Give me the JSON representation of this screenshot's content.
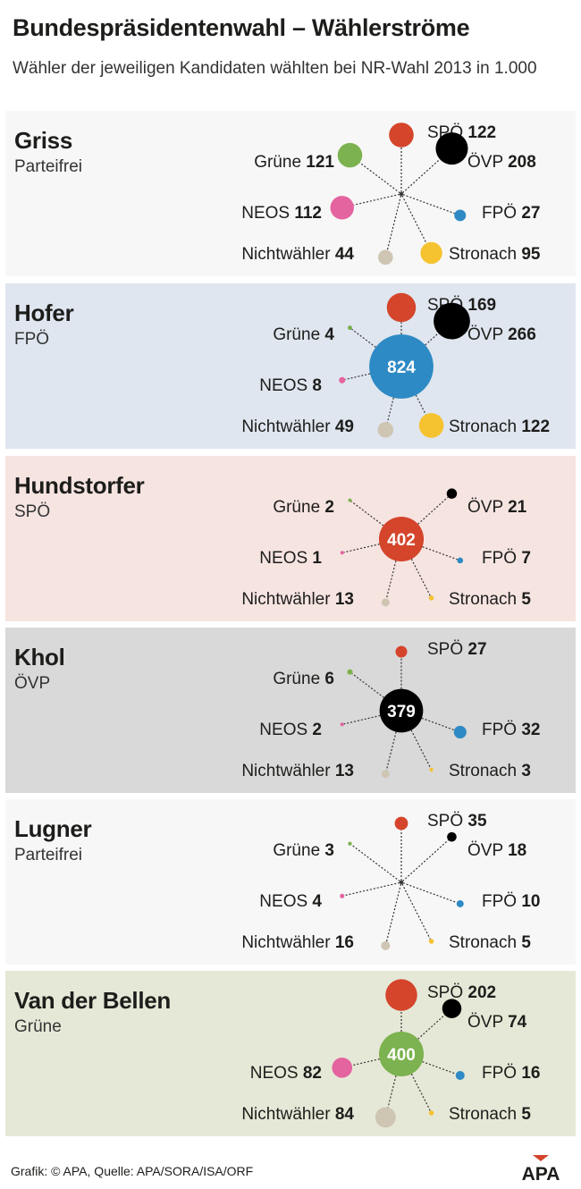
{
  "header": {
    "title": "Bundespräsidentenwahl – Wählerströme",
    "subtitle": "Wähler der jeweiligen Kandidaten wählten bei NR-Wahl 2013 in 1.000"
  },
  "footer": {
    "source": "Grafik: © APA, Quelle: APA/SORA/ISA/ORF",
    "logo_text": "APA"
  },
  "colors": {
    "SPÖ": "#d4452b",
    "ÖVP": "#000000",
    "FPÖ": "#2d8ac4",
    "Stronach": "#f5c330",
    "Nichtwähler": "#cfc5b3",
    "NEOS": "#e4649f",
    "Grüne": "#7cb24f"
  },
  "chart_data": {
    "type": "bubble-star",
    "unit": "in 1.000",
    "spokes": [
      "SPÖ",
      "ÖVP",
      "FPÖ",
      "Stronach",
      "Nichtwähler",
      "NEOS",
      "Grüne"
    ],
    "candidates": [
      {
        "name": "Griss",
        "party": "Parteifrei",
        "center": null,
        "panel_bg": "#f7f7f7",
        "flows": {
          "SPÖ": 122,
          "ÖVP": 208,
          "FPÖ": 27,
          "Stronach": 95,
          "Nichtwähler": 44,
          "NEOS": 112,
          "Grüne": 121
        }
      },
      {
        "name": "Hofer",
        "party": "FPÖ",
        "center": 824,
        "center_party": "FPÖ",
        "panel_bg": "#dfe6ef",
        "flows": {
          "SPÖ": 169,
          "ÖVP": 266,
          "Stronach": 122,
          "Nichtwähler": 49,
          "NEOS": 8,
          "Grüne": 4
        }
      },
      {
        "name": "Hundstorfer",
        "party": "SPÖ",
        "center": 402,
        "center_party": "SPÖ",
        "panel_bg": "#f6e4e1",
        "flows": {
          "ÖVP": 21,
          "FPÖ": 7,
          "Stronach": 5,
          "Nichtwähler": 13,
          "NEOS": 1,
          "Grüne": 2
        }
      },
      {
        "name": "Khol",
        "party": "ÖVP",
        "center": 379,
        "center_party": "ÖVP",
        "panel_bg": "#d9d9d9",
        "flows": {
          "SPÖ": 27,
          "FPÖ": 32,
          "Stronach": 3,
          "Nichtwähler": 13,
          "NEOS": 2,
          "Grüne": 6
        }
      },
      {
        "name": "Lugner",
        "party": "Parteifrei",
        "center": null,
        "panel_bg": "#f7f7f7",
        "flows": {
          "SPÖ": 35,
          "ÖVP": 18,
          "FPÖ": 10,
          "Stronach": 5,
          "Nichtwähler": 16,
          "NEOS": 4,
          "Grüne": 3
        }
      },
      {
        "name": "Van der Bellen",
        "party": "Grüne",
        "center": 400,
        "center_party": "Grüne",
        "panel_bg": "#e6e8d7",
        "flows": {
          "SPÖ": 202,
          "ÖVP": 74,
          "FPÖ": 16,
          "Stronach": 5,
          "Nichtwähler": 84,
          "NEOS": 82
        }
      }
    ]
  }
}
